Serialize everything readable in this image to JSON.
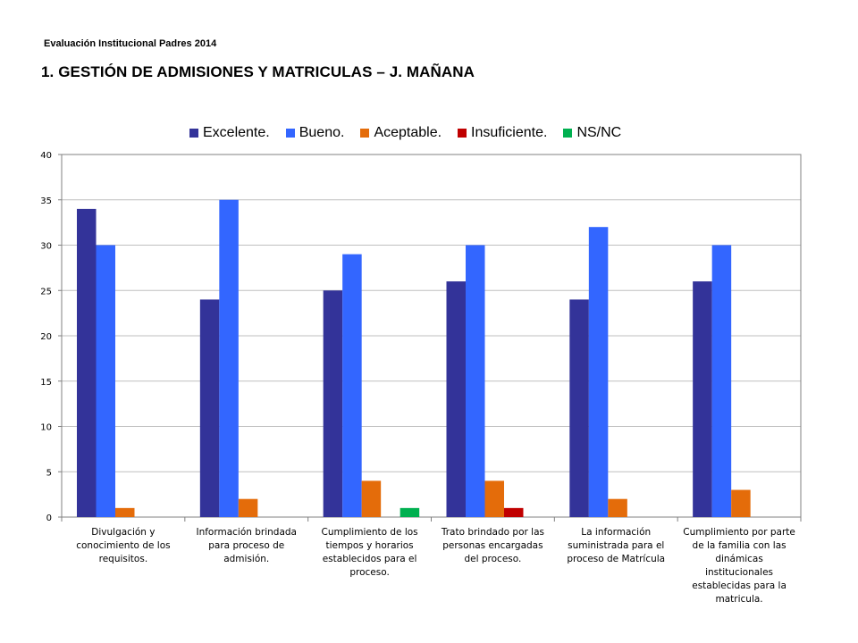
{
  "header": {
    "eyebrow": "Evaluación Institucional Padres 2014",
    "title": "1. GESTIÓN DE ADMISIONES Y MATRICULAS – J. MAÑANA"
  },
  "chart_data": {
    "type": "bar",
    "title": "",
    "xlabel": "",
    "ylabel": "",
    "ylim": [
      0,
      40
    ],
    "yticks": [
      0,
      5,
      10,
      15,
      20,
      25,
      30,
      35,
      40
    ],
    "grid": true,
    "legend_position": "top",
    "categories": [
      "Divulgación y conocimiento de los requisitos.",
      "Información brindada para proceso de admisión.",
      "Cumplimiento de los tiempos y horarios establecidos para el proceso.",
      "Trato brindado por las personas encargadas del proceso.",
      "La información suministrada para el proceso de Matrícula",
      "Cumplimiento por parte de la familia con las dinámicas institucionales establecidas para la matricula."
    ],
    "series": [
      {
        "name": "Excelente.",
        "color": "#333399",
        "values": [
          34,
          24,
          25,
          26,
          24,
          26
        ]
      },
      {
        "name": "Bueno.",
        "color": "#3366FF",
        "values": [
          30,
          35,
          29,
          30,
          32,
          30
        ]
      },
      {
        "name": "Aceptable.",
        "color": "#E46C0A",
        "values": [
          1,
          2,
          4,
          4,
          2,
          3
        ]
      },
      {
        "name": "Insuficiente.",
        "color": "#C00000",
        "values": [
          0,
          0,
          0,
          1,
          0,
          0
        ]
      },
      {
        "name": "NS/NC",
        "color": "#00B050",
        "values": [
          0,
          0,
          1,
          0,
          0,
          0
        ]
      }
    ]
  }
}
